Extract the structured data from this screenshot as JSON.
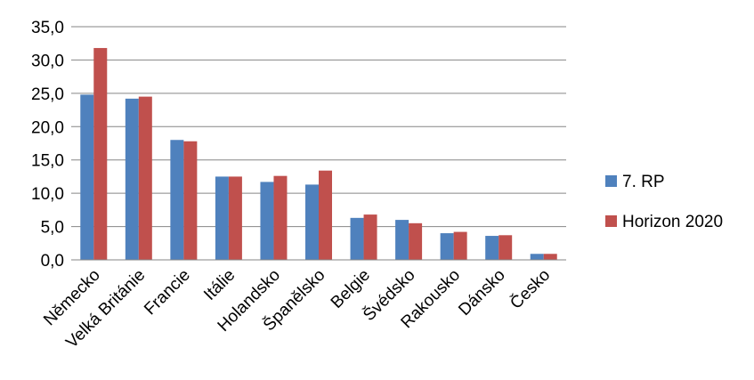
{
  "chart_data": {
    "type": "bar",
    "categories": [
      "Německo",
      "Velká Británie",
      "Francie",
      "Itálie",
      "Holandsko",
      "Španělsko",
      "Belgie",
      "Švédsko",
      "Rakousko",
      "Dánsko",
      "Česko"
    ],
    "series": [
      {
        "name": "7. RP",
        "color": "#4F81BD",
        "values": [
          24.8,
          24.2,
          18.0,
          12.5,
          11.7,
          11.3,
          6.3,
          6.0,
          4.0,
          3.6,
          0.9
        ]
      },
      {
        "name": "Horizon 2020",
        "color": "#C0504D",
        "values": [
          31.8,
          24.5,
          17.8,
          12.5,
          12.6,
          13.4,
          6.8,
          5.5,
          4.2,
          3.7,
          0.9
        ]
      }
    ],
    "title": "",
    "xlabel": "",
    "ylabel": "",
    "ylim": [
      0,
      35
    ],
    "yticks": [
      "0,0",
      "5,0",
      "10,0",
      "15,0",
      "20,0",
      "25,0",
      "30,0",
      "35,0"
    ],
    "grid": true,
    "legend": "right"
  }
}
